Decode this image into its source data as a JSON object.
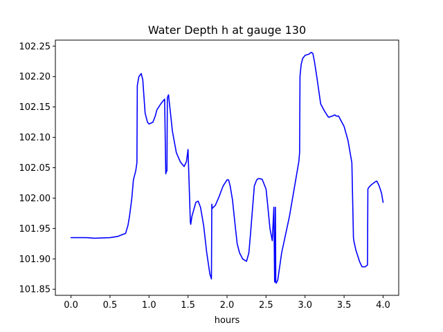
{
  "chart_data": {
    "type": "line",
    "title": "Water Depth h at gauge 130",
    "xlabel": "hours",
    "ylabel": "",
    "xlim": [
      -0.2,
      4.2
    ],
    "ylim": [
      101.84,
      102.26
    ],
    "xticks": [
      0.0,
      0.5,
      1.0,
      1.5,
      2.0,
      2.5,
      3.0,
      3.5,
      4.0
    ],
    "xtick_labels": [
      "0.0",
      "0.5",
      "1.0",
      "1.5",
      "2.0",
      "2.5",
      "3.0",
      "3.5",
      "4.0"
    ],
    "yticks": [
      101.85,
      101.9,
      101.95,
      102.0,
      102.05,
      102.1,
      102.15,
      102.2,
      102.25
    ],
    "ytick_labels": [
      "101.85",
      "101.90",
      "101.95",
      "102.00",
      "102.05",
      "102.10",
      "102.15",
      "102.20",
      "102.25"
    ],
    "grid": false,
    "color": "#0000ff",
    "series": [
      {
        "x": [
          0.0,
          0.2,
          0.3,
          0.5,
          0.6,
          0.7,
          0.73,
          0.75,
          0.78,
          0.8,
          0.83,
          0.845,
          0.85,
          0.87,
          0.9,
          0.92,
          0.95,
          0.98,
          1.0,
          1.05,
          1.08,
          1.1,
          1.15,
          1.2,
          1.215,
          1.22,
          1.23,
          1.235,
          1.25,
          1.3,
          1.35,
          1.4,
          1.45,
          1.48,
          1.5,
          1.53,
          1.535,
          1.55,
          1.6,
          1.63,
          1.66,
          1.7,
          1.74,
          1.78,
          1.8,
          1.805,
          1.81,
          1.85,
          1.9,
          1.92,
          1.95,
          2.0,
          2.02,
          2.04,
          2.07,
          2.1,
          2.13,
          2.16,
          2.2,
          2.25,
          2.28,
          2.3,
          2.35,
          2.38,
          2.4,
          2.42,
          2.45,
          2.5,
          2.52,
          2.55,
          2.58,
          2.6,
          2.61,
          2.615,
          2.62,
          2.625,
          2.63,
          2.65,
          2.7,
          2.8,
          2.88,
          2.92,
          2.93,
          2.935,
          2.95,
          2.97,
          3.0,
          3.05,
          3.08,
          3.1,
          3.12,
          3.15,
          3.2,
          3.25,
          3.3,
          3.35,
          3.38,
          3.4,
          3.43,
          3.45,
          3.5,
          3.55,
          3.6,
          3.62,
          3.625,
          3.65,
          3.7,
          3.73,
          3.77,
          3.8,
          3.805,
          3.82,
          3.85,
          3.88,
          3.9,
          3.92,
          3.95,
          3.98,
          4.0
        ],
        "values": [
          101.935,
          101.935,
          101.934,
          101.935,
          101.937,
          101.942,
          101.955,
          101.97,
          102.0,
          102.03,
          102.045,
          102.058,
          102.185,
          102.2,
          102.205,
          102.195,
          102.14,
          102.125,
          102.122,
          102.125,
          102.135,
          102.145,
          102.155,
          102.163,
          102.04,
          102.043,
          102.045,
          102.165,
          102.17,
          102.11,
          102.075,
          102.06,
          102.052,
          102.06,
          102.08,
          101.96,
          101.957,
          101.97,
          101.993,
          101.995,
          101.985,
          101.955,
          101.91,
          101.875,
          101.867,
          101.99,
          101.983,
          101.988,
          102.003,
          102.01,
          102.02,
          102.03,
          102.03,
          102.02,
          101.997,
          101.96,
          101.925,
          101.91,
          101.9,
          101.896,
          101.91,
          101.94,
          102.02,
          102.03,
          102.032,
          102.032,
          102.031,
          102.015,
          101.99,
          101.95,
          101.93,
          101.985,
          101.862,
          101.862,
          101.985,
          101.862,
          101.86,
          101.865,
          101.91,
          101.97,
          102.03,
          102.06,
          102.075,
          102.2,
          102.22,
          102.23,
          102.235,
          102.237,
          102.24,
          102.238,
          102.225,
          102.2,
          102.155,
          102.143,
          102.133,
          102.135,
          102.137,
          102.135,
          102.135,
          102.13,
          102.118,
          102.095,
          102.058,
          101.935,
          101.93,
          101.915,
          101.895,
          101.887,
          101.887,
          101.89,
          102.015,
          102.018,
          102.022,
          102.025,
          102.027,
          102.028,
          102.02,
          102.008,
          101.993
        ]
      }
    ]
  }
}
